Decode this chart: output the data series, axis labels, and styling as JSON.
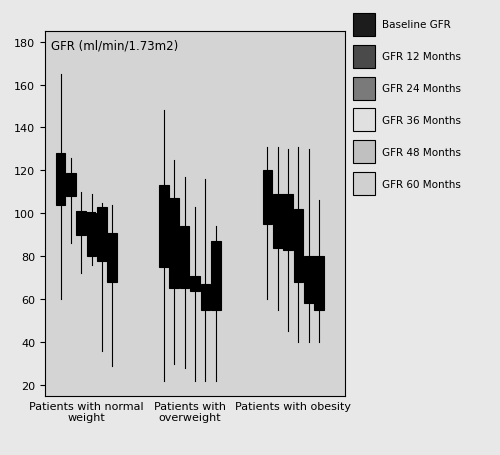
{
  "title": "GFR (ml/min/1.73m2)",
  "ylim": [
    15,
    185
  ],
  "yticks": [
    20,
    40,
    60,
    80,
    100,
    120,
    140,
    160,
    180
  ],
  "plot_bg_color": "#d4d4d4",
  "fig_bg_color": "#e8e8e8",
  "groups": [
    "Patients with normal\nweight",
    "Patients with\noverweight",
    "Patients with obesity"
  ],
  "legend_labels": [
    "Baseline GFR",
    "GFR 12 Months",
    "GFR 24 Months",
    "GFR 36 Months",
    "GFR 48 Months",
    "GFR 60 Months"
  ],
  "box_colors": [
    "#1c1c1c",
    "#4a4a4a",
    "#7a7a7a",
    "#e0e0e0",
    "#c0c0c0",
    "#d0d0d0"
  ],
  "box_edge_colors": [
    "#000000",
    "#000000",
    "#000000",
    "#000000",
    "#000000",
    "#000000"
  ],
  "boxplot_data": {
    "normal_weight": {
      "Baseline": {
        "whislo": 60,
        "q1": 104,
        "med": 115,
        "q3": 128,
        "whishi": 165
      },
      "12M": {
        "whislo": 86,
        "q1": 108,
        "med": 114,
        "q3": 119,
        "whishi": 126
      },
      "24M": {
        "whislo": 72,
        "q1": 90,
        "med": 100,
        "q3": 101,
        "whishi": 110
      },
      "36M": {
        "whislo": 76,
        "q1": 80,
        "med": 100,
        "q3": 100,
        "whishi": 109
      },
      "48M": {
        "whislo": 36,
        "q1": 78,
        "med": 85,
        "q3": 103,
        "whishi": 105
      },
      "60M": {
        "whislo": 29,
        "q1": 68,
        "med": 74,
        "q3": 91,
        "whishi": 104
      }
    },
    "overweight": {
      "Baseline": {
        "whislo": 22,
        "q1": 75,
        "med": 88,
        "q3": 113,
        "whishi": 148
      },
      "12M": {
        "whislo": 30,
        "q1": 65,
        "med": 87,
        "q3": 107,
        "whishi": 125
      },
      "24M": {
        "whislo": 28,
        "q1": 65,
        "med": 87,
        "q3": 94,
        "whishi": 117
      },
      "36M": {
        "whislo": 22,
        "q1": 64,
        "med": 70,
        "q3": 71,
        "whishi": 103
      },
      "48M": {
        "whislo": 22,
        "q1": 55,
        "med": 57,
        "q3": 67,
        "whishi": 116
      },
      "60M": {
        "whislo": 22,
        "q1": 55,
        "med": 56,
        "q3": 87,
        "whishi": 94
      }
    },
    "obesity": {
      "Baseline": {
        "whislo": 60,
        "q1": 95,
        "med": 108,
        "q3": 120,
        "whishi": 131
      },
      "12M": {
        "whislo": 55,
        "q1": 84,
        "med": 95,
        "q3": 109,
        "whishi": 131
      },
      "24M": {
        "whislo": 45,
        "q1": 83,
        "med": 84,
        "q3": 109,
        "whishi": 130
      },
      "36M": {
        "whislo": 40,
        "q1": 68,
        "med": 75,
        "q3": 102,
        "whishi": 131
      },
      "48M": {
        "whislo": 40,
        "q1": 58,
        "med": 74,
        "q3": 80,
        "whishi": 130
      },
      "60M": {
        "whislo": 40,
        "q1": 55,
        "med": 70,
        "q3": 80,
        "whishi": 106
      }
    }
  },
  "group_centers": [
    1.5,
    4.5,
    7.5
  ],
  "box_offsets": [
    -0.75,
    -0.45,
    -0.15,
    0.15,
    0.45,
    0.75
  ],
  "box_width": 0.28
}
